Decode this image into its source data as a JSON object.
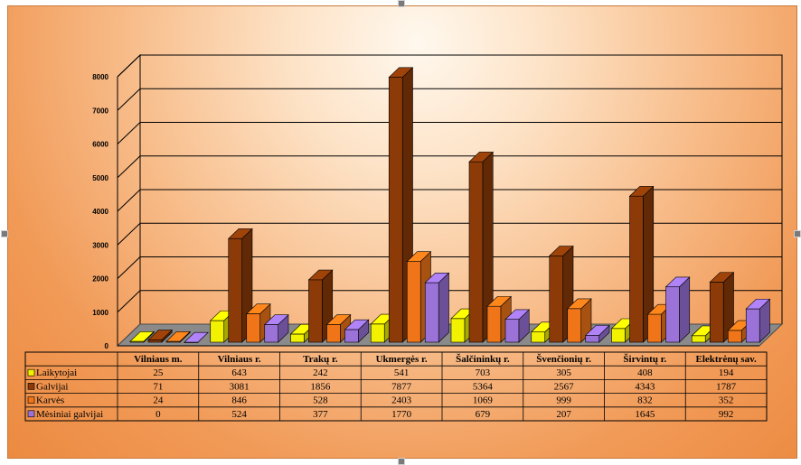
{
  "chart_data": {
    "type": "bar",
    "categories": [
      "Vilniaus m.",
      "Vilniaus r.",
      "Trakų r.",
      "Ukmergės r.",
      "Šalčininkų r.",
      "Švenčionių r.",
      "Širvintų r.",
      "Elektrėnų sav."
    ],
    "series": [
      {
        "name": "Laikytojai",
        "values": [
          25,
          643,
          242,
          541,
          703,
          305,
          408,
          194
        ],
        "color": "#f2f200"
      },
      {
        "name": "Galvijai",
        "values": [
          71,
          3081,
          1856,
          7877,
          5364,
          2567,
          4343,
          1787
        ],
        "color": "#8b3a08"
      },
      {
        "name": "Karvės",
        "values": [
          24,
          846,
          528,
          2403,
          1069,
          999,
          832,
          352
        ],
        "color": "#f07518"
      },
      {
        "name": "Mėsiniai galvijai",
        "values": [
          0,
          524,
          377,
          1770,
          679,
          207,
          1645,
          992
        ],
        "color": "#9a72d8"
      }
    ],
    "yticks": [
      0,
      1000,
      2000,
      3000,
      4000,
      5000,
      6000,
      7000,
      8000
    ],
    "ylim": [
      0,
      8000
    ],
    "grid": true,
    "legend": "data-table-left",
    "title": "",
    "xlabel": "",
    "ylabel": ""
  }
}
